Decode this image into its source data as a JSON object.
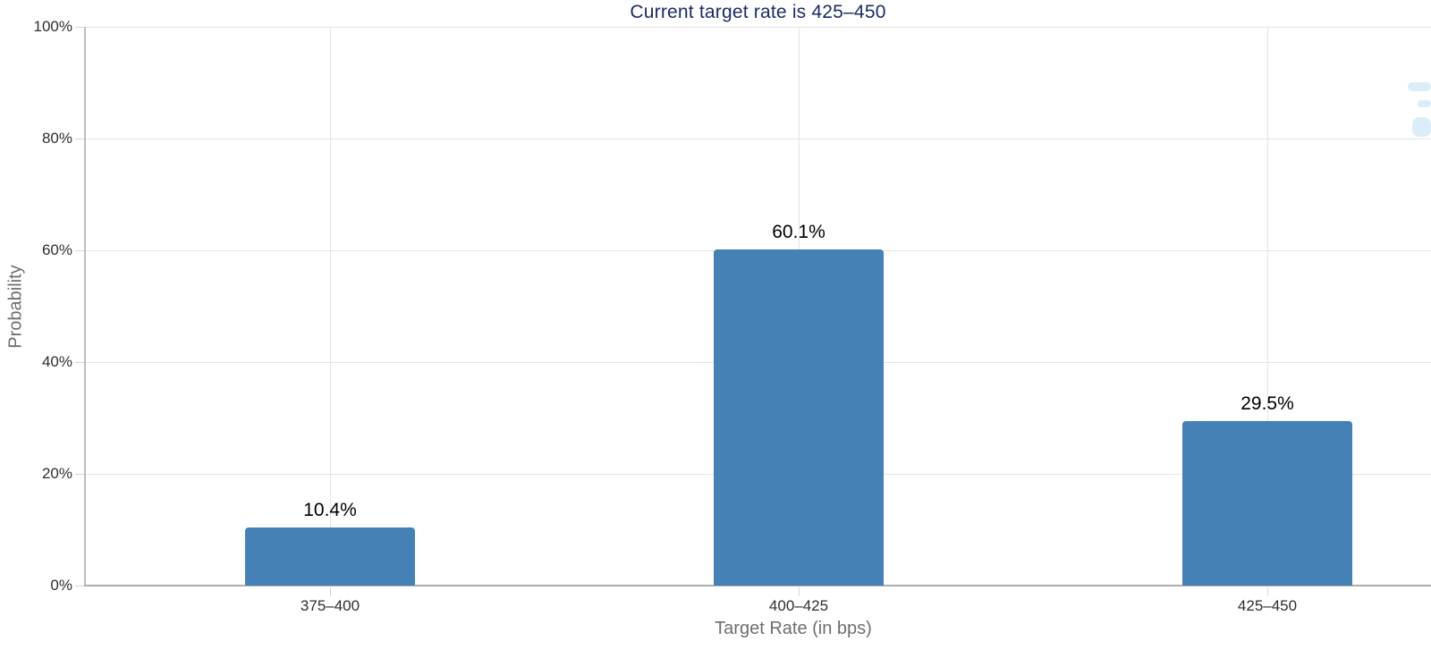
{
  "chart_data": {
    "type": "bar",
    "title": "Current target rate is 425–450",
    "categories": [
      "375–400",
      "400–425",
      "425–450"
    ],
    "values": [
      10.4,
      60.1,
      29.5
    ],
    "value_labels": [
      "10.4%",
      "60.1%",
      "29.5%"
    ],
    "xlabel": "Target Rate (in bps)",
    "ylabel": "Probability",
    "ylim": [
      0,
      100
    ],
    "yticks": [
      0,
      20,
      40,
      60,
      80,
      100
    ],
    "ytick_labels": [
      "0%",
      "20%",
      "40%",
      "60%",
      "80%",
      "100%"
    ],
    "grid": true,
    "legend_position": "none",
    "colors": {
      "bar": "#4581b5",
      "title": "#1c2b66",
      "grid": "#e4e4e4",
      "axis_line": "#adadad",
      "tick_mark": "#d6d6d6",
      "tick_label": "#2e2e2e",
      "axis_title": "#6e6e6e",
      "value_label": "#000000",
      "watermark": "#daedf9",
      "background": "#ffffff"
    }
  }
}
